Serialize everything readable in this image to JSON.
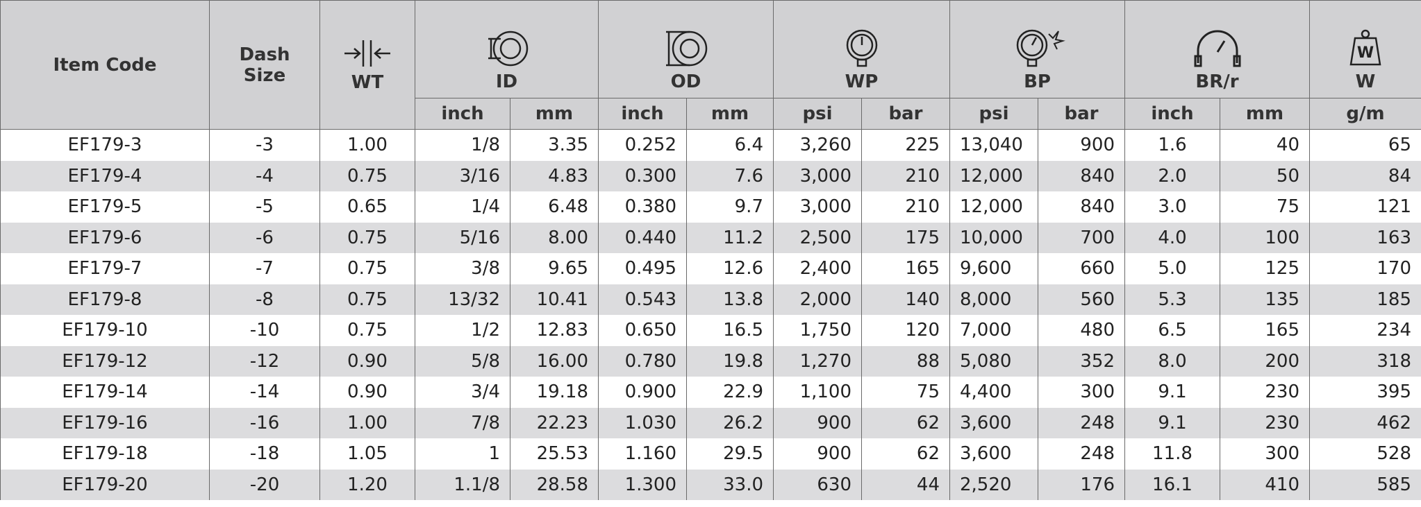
{
  "table": {
    "groups": [
      "Item Code",
      "Dash Size",
      "WT",
      "ID",
      "OD",
      "WP",
      "BP",
      "BR/r",
      "W"
    ],
    "units": [
      "inch",
      "mm",
      "inch",
      "mm",
      "psi",
      "bar",
      "psi",
      "bar",
      "inch",
      "mm",
      "g/m"
    ],
    "rows": [
      [
        "EF179-3",
        "-3",
        "1.00",
        "1/8",
        "3.35",
        "0.252",
        "6.4",
        "3,260",
        "225",
        "13,040",
        "900",
        "1.6",
        "40",
        "65"
      ],
      [
        "EF179-4",
        "-4",
        "0.75",
        "3/16",
        "4.83",
        "0.300",
        "7.6",
        "3,000",
        "210",
        "12,000",
        "840",
        "2.0",
        "50",
        "84"
      ],
      [
        "EF179-5",
        "-5",
        "0.65",
        "1/4",
        "6.48",
        "0.380",
        "9.7",
        "3,000",
        "210",
        "12,000",
        "840",
        "3.0",
        "75",
        "121"
      ],
      [
        "EF179-6",
        "-6",
        "0.75",
        "5/16",
        "8.00",
        "0.440",
        "11.2",
        "2,500",
        "175",
        "10,000",
        "700",
        "4.0",
        "100",
        "163"
      ],
      [
        "EF179-7",
        "-7",
        "0.75",
        "3/8",
        "9.65",
        "0.495",
        "12.6",
        "2,400",
        "165",
        "9,600",
        "660",
        "5.0",
        "125",
        "170"
      ],
      [
        "EF179-8",
        "-8",
        "0.75",
        "13/32",
        "10.41",
        "0.543",
        "13.8",
        "2,000",
        "140",
        "8,000",
        "560",
        "5.3",
        "135",
        "185"
      ],
      [
        "EF179-10",
        "-10",
        "0.75",
        "1/2",
        "12.83",
        "0.650",
        "16.5",
        "1,750",
        "120",
        "7,000",
        "480",
        "6.5",
        "165",
        "234"
      ],
      [
        "EF179-12",
        "-12",
        "0.90",
        "5/8",
        "16.00",
        "0.780",
        "19.8",
        "1,270",
        "88",
        "5,080",
        "352",
        "8.0",
        "200",
        "318"
      ],
      [
        "EF179-14",
        "-14",
        "0.90",
        "3/4",
        "19.18",
        "0.900",
        "22.9",
        "1,100",
        "75",
        "4,400",
        "300",
        "9.1",
        "230",
        "395"
      ],
      [
        "EF179-16",
        "-16",
        "1.00",
        "7/8",
        "22.23",
        "1.030",
        "26.2",
        "900",
        "62",
        "3,600",
        "248",
        "9.1",
        "230",
        "462"
      ],
      [
        "EF179-18",
        "-18",
        "1.05",
        "1",
        "25.53",
        "1.160",
        "29.5",
        "900",
        "62",
        "3,600",
        "248",
        "11.8",
        "300",
        "528"
      ],
      [
        "EF179-20",
        "-20",
        "1.20",
        "1.1/8",
        "28.58",
        "1.300",
        "33.0",
        "630",
        "44",
        "2,520",
        "176",
        "16.1",
        "410",
        "585"
      ]
    ]
  }
}
